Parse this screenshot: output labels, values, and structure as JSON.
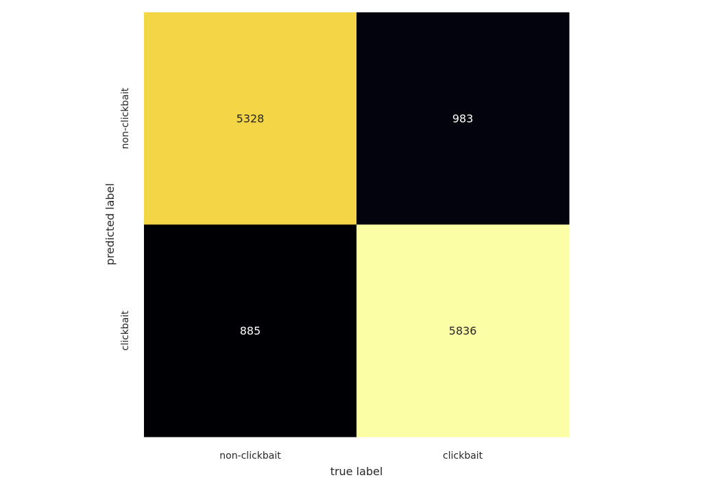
{
  "chart_data": {
    "type": "heatmap",
    "title": "",
    "xlabel": "true label",
    "ylabel": "predicted label",
    "x_categories": [
      "non-clickbait",
      "clickbait"
    ],
    "y_categories": [
      "non-clickbait",
      "clickbait"
    ],
    "values": [
      [
        5328,
        983
      ],
      [
        885,
        5836
      ]
    ],
    "colormap": "inferno",
    "value_range": [
      885,
      5836
    ],
    "cell_colors": [
      [
        "#f3d545",
        "#03030e"
      ],
      [
        "#000004",
        "#fbfea4"
      ]
    ],
    "annotation_colors": [
      [
        "#262626",
        "#ffffff"
      ],
      [
        "#ffffff",
        "#262626"
      ]
    ],
    "colorbar": false,
    "grid": false
  }
}
